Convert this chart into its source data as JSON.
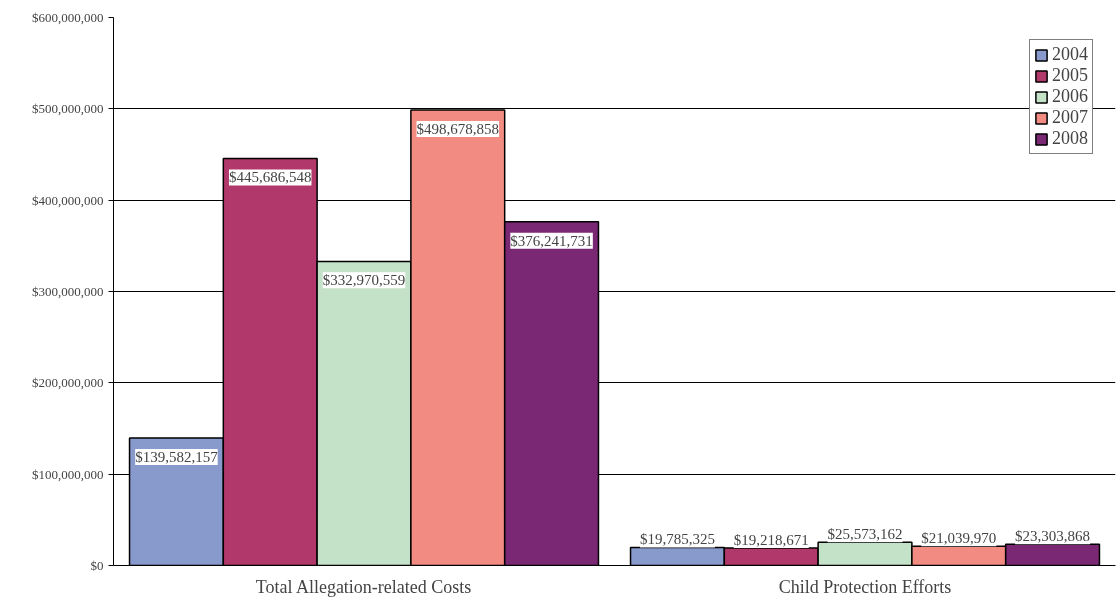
{
  "chart_data": {
    "type": "bar",
    "categories": [
      "Total Allegation-related Costs",
      "Child Protection Efforts"
    ],
    "series": [
      {
        "name": "2004",
        "color": "#8899cc",
        "values": [
          139582157,
          19785325
        ],
        "value_labels": [
          "$139,582,157",
          "$19,785,325"
        ]
      },
      {
        "name": "2005",
        "color": "#b0386a",
        "values": [
          445686548,
          19218671
        ],
        "value_labels": [
          "$445,686,548",
          "$19,218,671"
        ]
      },
      {
        "name": "2006",
        "color": "#c4e2c8",
        "values": [
          332970559,
          25573162
        ],
        "value_labels": [
          "$332,970,559",
          "$25,573,162"
        ]
      },
      {
        "name": "2007",
        "color": "#f28b82",
        "values": [
          498678858,
          21039970
        ],
        "value_labels": [
          "$498,678,858",
          "$21,039,970"
        ]
      },
      {
        "name": "2008",
        "color": "#7b2874",
        "values": [
          376241731,
          23303868
        ],
        "value_labels": [
          "$376,241,731",
          "$23,303,868"
        ]
      }
    ],
    "ylim": [
      0,
      600000000
    ],
    "yticks": [
      {
        "value": 0,
        "label": "$0"
      },
      {
        "value": 100000000,
        "label": "$100,000,000"
      },
      {
        "value": 200000000,
        "label": "$200,000,000"
      },
      {
        "value": 300000000,
        "label": "$300,000,000"
      },
      {
        "value": 400000000,
        "label": "$400,000,000"
      },
      {
        "value": 500000000,
        "label": "$500,000,000"
      },
      {
        "value": 600000000,
        "label": "$600,000,000"
      }
    ],
    "grid": "y",
    "legend": "top right"
  }
}
